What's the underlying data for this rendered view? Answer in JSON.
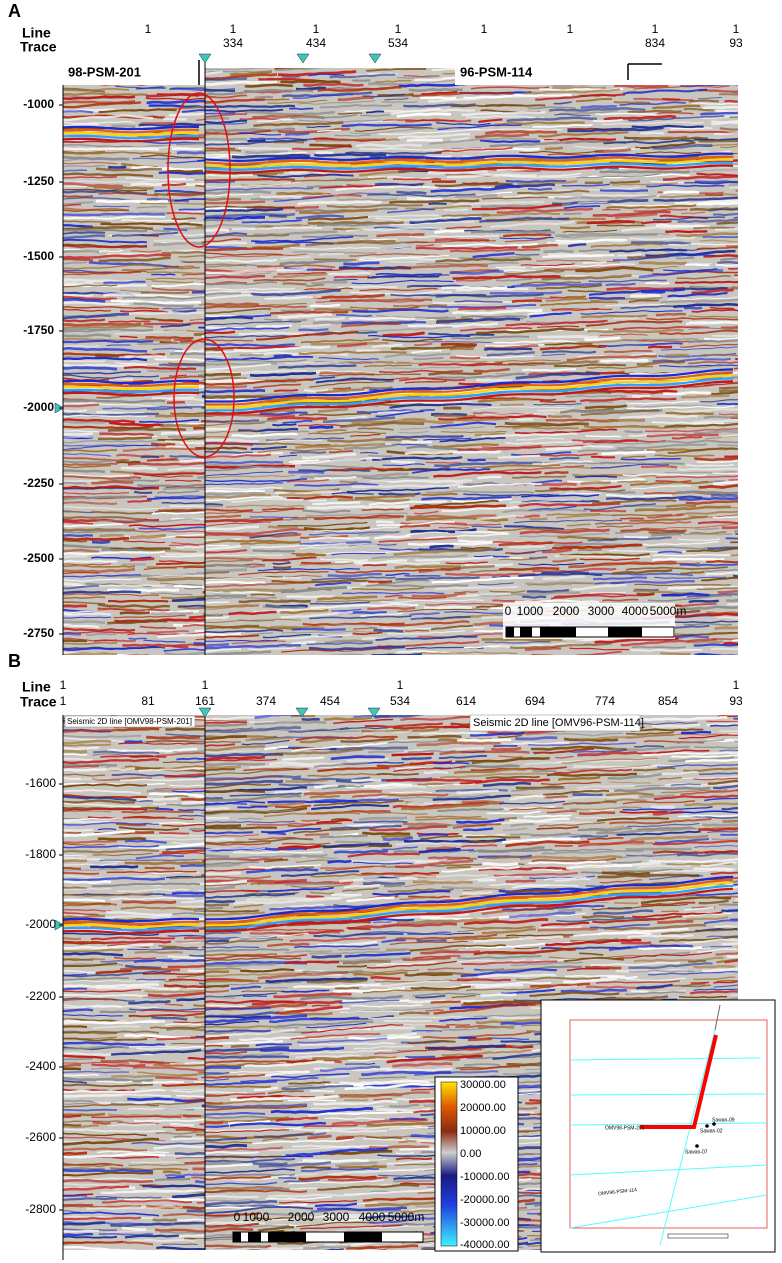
{
  "panel_a": {
    "label": "A",
    "line_label": "Line",
    "trace_label": "Trace",
    "line_numbers": [
      "1",
      "1",
      "1",
      "1",
      "1",
      "1",
      "1",
      "1"
    ],
    "trace_numbers": [
      "334",
      "434",
      "534",
      "834",
      "93"
    ],
    "depth_labels": [
      "-1000",
      "-1250",
      "-1500",
      "-1750",
      "-2000",
      "-2250",
      "-2500",
      "-2750"
    ],
    "line_names": [
      "98-PSM-201",
      "96-PSM-114"
    ],
    "scale_labels": [
      "0",
      "1000",
      "2000",
      "3000",
      "4000",
      "5000m"
    ]
  },
  "panel_b": {
    "label": "B",
    "line_label": "Line",
    "trace_label": "Trace",
    "line_numbers": [
      "1",
      "1",
      "1",
      "1"
    ],
    "trace_numbers": [
      "1",
      "81",
      "161",
      "374",
      "454",
      "534",
      "614",
      "694",
      "774",
      "854",
      "93"
    ],
    "depth_labels": [
      "-1600",
      "-1800",
      "-2000",
      "-2200",
      "-2400",
      "-2600",
      "-2800"
    ],
    "line_names": [
      "Seismic 2D line [OMV98-PSM-201]",
      "Seismic 2D line [OMV96-PSM-114]"
    ],
    "scale_labels": [
      "0",
      "1000",
      "2000",
      "3000",
      "4000",
      "5000m"
    ],
    "colorbar_labels": [
      "30000.00",
      "20000.00",
      "10000.00",
      "0.00",
      "-10000.00",
      "-20000.00",
      "-30000.00",
      "-40000.00"
    ],
    "map_labels": [
      "OMV98-PSM-201",
      "Sawan-02",
      "Sawan-09",
      "Sawan-07",
      "OMV96-PSM-114"
    ]
  }
}
